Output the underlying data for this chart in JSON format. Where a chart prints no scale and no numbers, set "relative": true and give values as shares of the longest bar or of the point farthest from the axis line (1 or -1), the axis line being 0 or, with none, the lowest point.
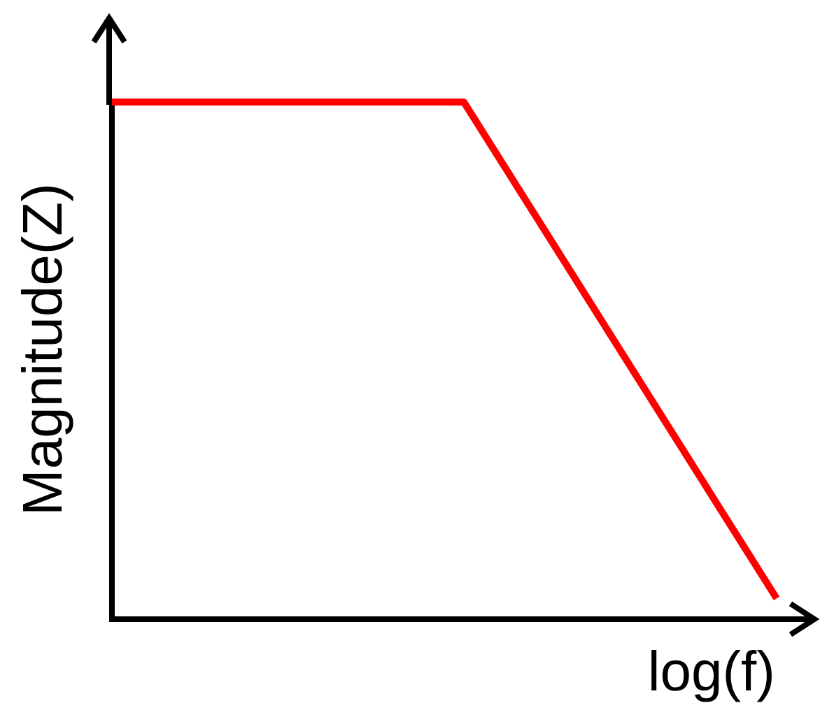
{
  "chart_data": {
    "type": "line",
    "relative": true,
    "xlabel": "log(f)",
    "ylabel": "Magnitude(Z)",
    "categories": [
      null,
      null,
      null,
      null,
      null,
      null,
      null,
      null,
      null,
      null,
      null,
      null,
      null,
      null,
      null,
      null,
      null,
      null
    ],
    "series": [
      {
        "color": "#ff0000",
        "values": [
          1,
          null,
          null,
          null,
          null,
          null,
          null,
          null,
          null,
          1,
          null,
          null,
          null,
          null,
          null,
          null,
          null,
          0.04
        ]
      }
    ],
    "grid": false,
    "legend": false,
    "marker": "none",
    "line_style": "solid"
  }
}
